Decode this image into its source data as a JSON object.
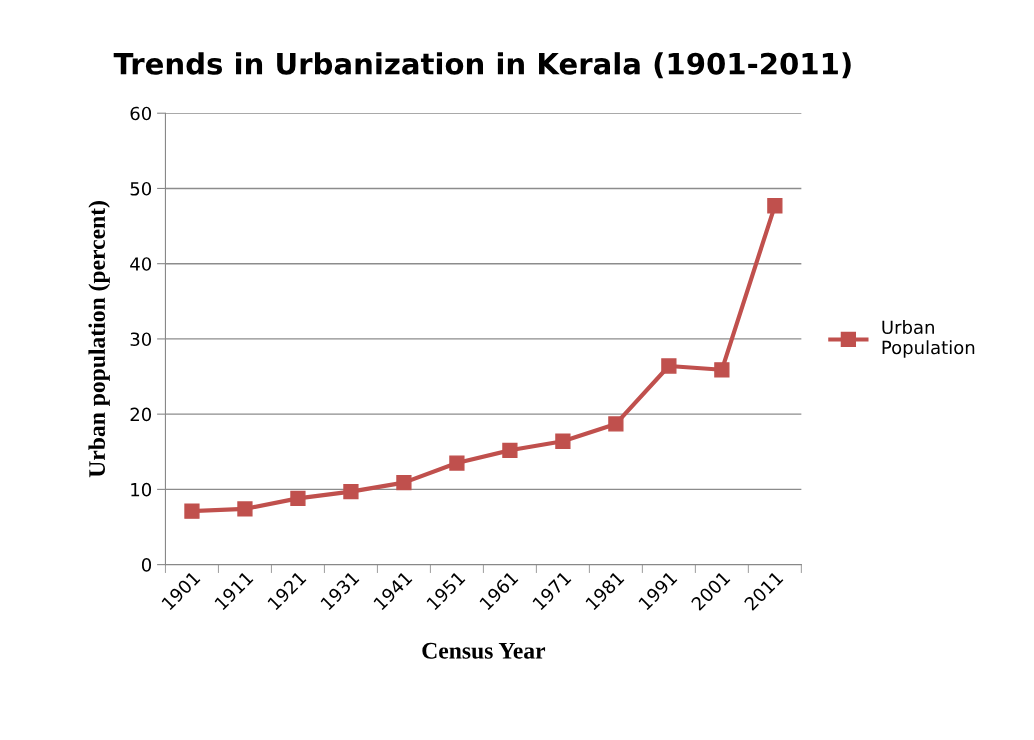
{
  "chart_data": {
    "type": "line",
    "title": "Trends in Urbanization in Kerala (1901-2011)",
    "xlabel": "Census Year",
    "ylabel": "Urban population (percent)",
    "categories": [
      "1901",
      "1911",
      "1921",
      "1931",
      "1941",
      "1951",
      "1961",
      "1971",
      "1981",
      "1991",
      "2001",
      "2011"
    ],
    "series": [
      {
        "name": "Urban\nPopulation",
        "color": "#c0504d",
        "values": [
          7.1,
          7.4,
          8.8,
          9.7,
          10.9,
          13.5,
          15.2,
          16.4,
          18.7,
          26.4,
          25.9,
          47.7
        ]
      }
    ],
    "ylim": [
      0,
      60
    ],
    "yticks": [
      0,
      10,
      20,
      30,
      40,
      50,
      60
    ],
    "grid": "y",
    "legend": "right",
    "marker": "square",
    "line_style": "solid"
  }
}
